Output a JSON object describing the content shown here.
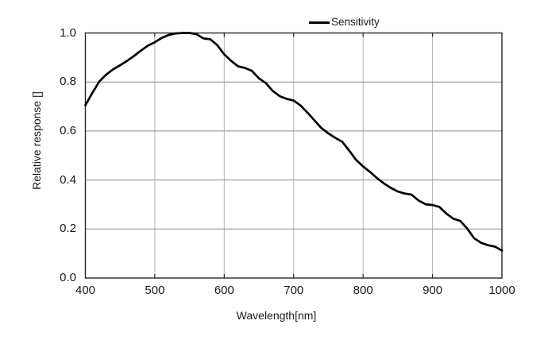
{
  "chart_data": {
    "type": "line",
    "title": "",
    "xlabel": "Wavelength[nm]",
    "ylabel": "Relative response []",
    "xlim": [
      400,
      1000
    ],
    "ylim": [
      0,
      1
    ],
    "x_ticks": [
      400,
      500,
      600,
      700,
      800,
      900,
      1000
    ],
    "y_ticks": [
      0,
      0.2,
      0.4,
      0.6,
      0.8,
      1.0
    ],
    "grid": true,
    "legend_position": "top-center",
    "colors": {
      "curve": "#000000",
      "grid_v": "#b3b3b3",
      "grid_h": "#8c8c8c",
      "axis": "#262626",
      "text": "#1a1a1a",
      "background": "#ffffff"
    },
    "series": [
      {
        "name": "Sensitivity",
        "x": [
          400,
          410,
          420,
          430,
          440,
          450,
          460,
          470,
          480,
          490,
          500,
          510,
          520,
          530,
          540,
          550,
          560,
          570,
          580,
          590,
          600,
          610,
          620,
          630,
          640,
          650,
          660,
          670,
          680,
          690,
          700,
          710,
          720,
          730,
          740,
          750,
          760,
          770,
          780,
          790,
          800,
          810,
          820,
          830,
          840,
          850,
          860,
          870,
          880,
          890,
          900,
          910,
          920,
          930,
          940,
          950,
          960,
          970,
          980,
          990,
          1000
        ],
        "values": [
          0.705,
          0.755,
          0.802,
          0.83,
          0.852,
          0.868,
          0.886,
          0.906,
          0.928,
          0.948,
          0.962,
          0.98,
          0.992,
          0.998,
          1.0,
          1.0,
          0.995,
          0.978,
          0.974,
          0.95,
          0.913,
          0.886,
          0.864,
          0.857,
          0.845,
          0.815,
          0.795,
          0.763,
          0.742,
          0.731,
          0.724,
          0.704,
          0.675,
          0.643,
          0.612,
          0.59,
          0.572,
          0.556,
          0.52,
          0.482,
          0.455,
          0.433,
          0.408,
          0.386,
          0.368,
          0.353,
          0.345,
          0.34,
          0.316,
          0.301,
          0.298,
          0.29,
          0.263,
          0.242,
          0.233,
          0.202,
          0.162,
          0.144,
          0.134,
          0.128,
          0.112
        ]
      }
    ]
  }
}
